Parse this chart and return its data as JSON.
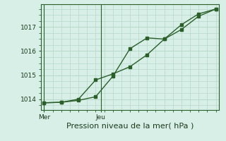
{
  "xlabel": "Pression niveau de la mer( hPa )",
  "background_color": "#d8efe8",
  "plot_bg_color": "#d8efe8",
  "grid_color": "#b8d8cc",
  "line_color": "#2a5f2a",
  "series1_x": [
    0,
    1,
    2,
    3,
    4,
    5,
    6,
    7,
    8,
    9,
    10
  ],
  "series1_y": [
    1013.85,
    1013.87,
    1013.95,
    1014.1,
    1014.95,
    1016.1,
    1016.55,
    1016.5,
    1017.1,
    1017.55,
    1017.75
  ],
  "series2_x": [
    0,
    1,
    2,
    3,
    4,
    5,
    6,
    7,
    8,
    9,
    10
  ],
  "series2_y": [
    1013.85,
    1013.87,
    1014.0,
    1014.8,
    1015.05,
    1015.35,
    1015.85,
    1016.5,
    1016.9,
    1017.45,
    1017.75
  ],
  "yticks": [
    1014,
    1015,
    1016,
    1017
  ],
  "ylim": [
    1013.55,
    1017.95
  ],
  "xlim": [
    -0.2,
    10.2
  ],
  "mer_x": 0,
  "jeu_x": 3.3,
  "tick_label_fontsize": 6.5,
  "xlabel_fontsize": 8
}
